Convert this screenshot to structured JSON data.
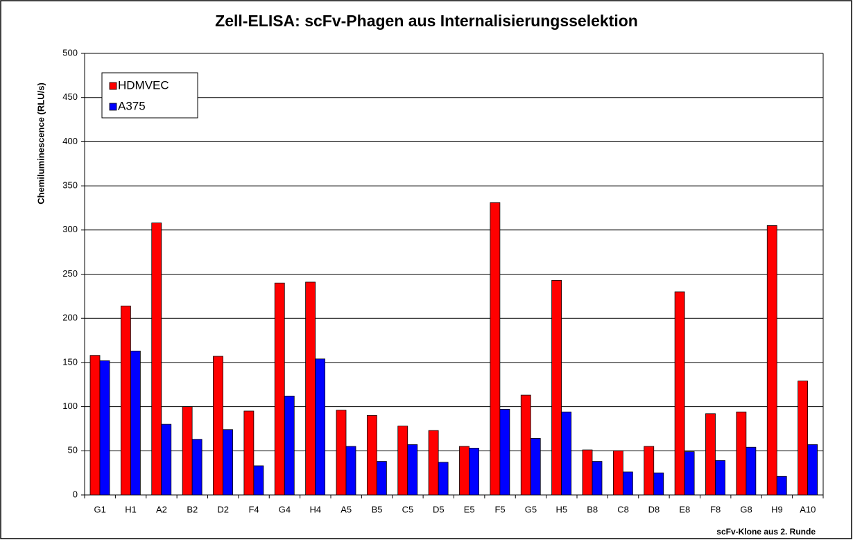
{
  "chart_data": {
    "type": "bar",
    "title": "Zell-ELISA: scFv-Phagen aus Internalisierungsselektion",
    "x_label": "scFv-Klone aus 2. Runde",
    "y_label": "Chemiluminescence (RLU/s)",
    "categories": [
      "G1",
      "H1",
      "A2",
      "B2",
      "D2",
      "F4",
      "G4",
      "H4",
      "A5",
      "B5",
      "C5",
      "D5",
      "E5",
      "F5",
      "G5",
      "H5",
      "B8",
      "C8",
      "D8",
      "E8",
      "F8",
      "G8",
      "H9",
      "A10"
    ],
    "series": [
      {
        "name": "HDMVEC",
        "color": "#ff0000",
        "values": [
          158,
          214,
          308,
          100,
          157,
          95,
          240,
          241,
          96,
          90,
          78,
          73,
          55,
          331,
          113,
          243,
          51,
          50,
          55,
          230,
          92,
          94,
          305,
          129
        ]
      },
      {
        "name": "A375",
        "color": "#0000ff",
        "values": [
          152,
          163,
          80,
          63,
          74,
          33,
          112,
          154,
          55,
          38,
          57,
          37,
          53,
          97,
          64,
          94,
          38,
          26,
          25,
          49,
          39,
          54,
          21,
          57
        ]
      }
    ],
    "ylim": [
      0,
      500
    ],
    "yticks": [
      0,
      50,
      100,
      150,
      200,
      250,
      300,
      350,
      400,
      450,
      500
    ],
    "grid": true,
    "legend": "top-left"
  }
}
